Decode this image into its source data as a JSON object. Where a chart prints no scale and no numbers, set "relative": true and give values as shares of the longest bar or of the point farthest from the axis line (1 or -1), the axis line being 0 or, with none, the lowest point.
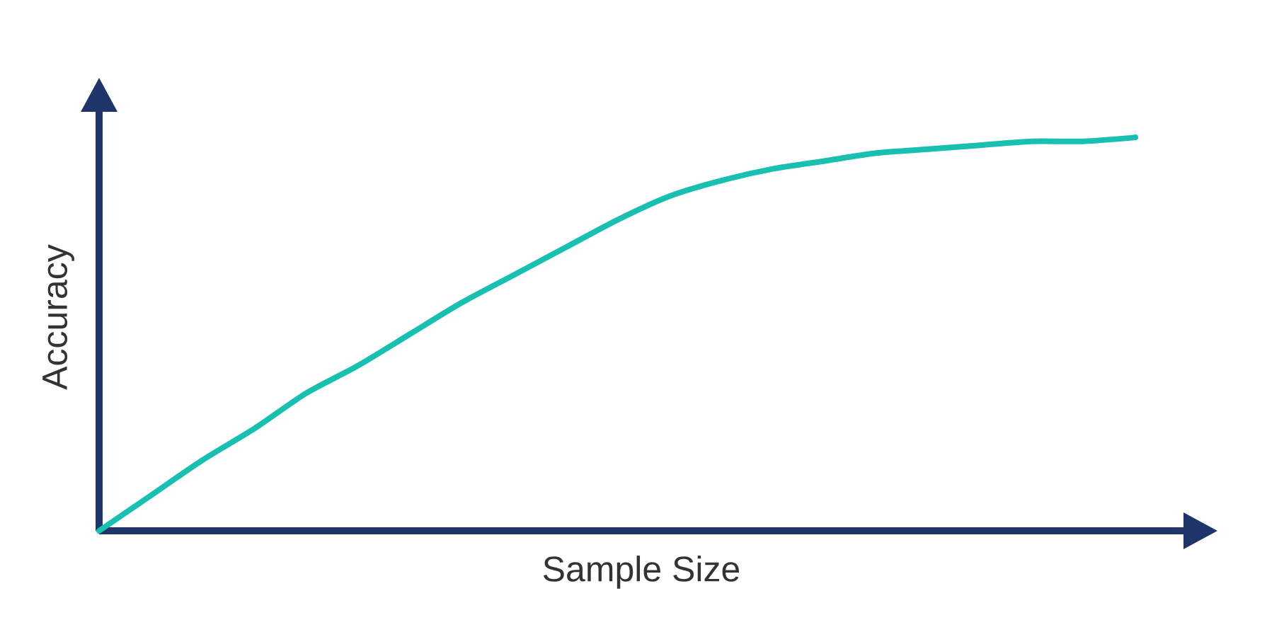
{
  "chart_data": {
    "type": "line",
    "xlabel": "Sample Size",
    "ylabel": "Accuracy",
    "relative": true,
    "color": "#19bfb1",
    "categories": [
      null,
      null,
      null,
      null,
      null,
      null,
      null,
      null,
      null,
      null,
      null,
      null,
      null,
      null,
      null,
      null,
      null,
      null,
      null,
      null,
      null
    ],
    "values": [
      0,
      0.09,
      0.18,
      0.26,
      0.35,
      0.42,
      0.5,
      0.58,
      0.65,
      0.72,
      0.79,
      0.85,
      0.89,
      0.92,
      0.94,
      0.96,
      0.97,
      0.98,
      0.99,
      0.99,
      1.0
    ]
  }
}
